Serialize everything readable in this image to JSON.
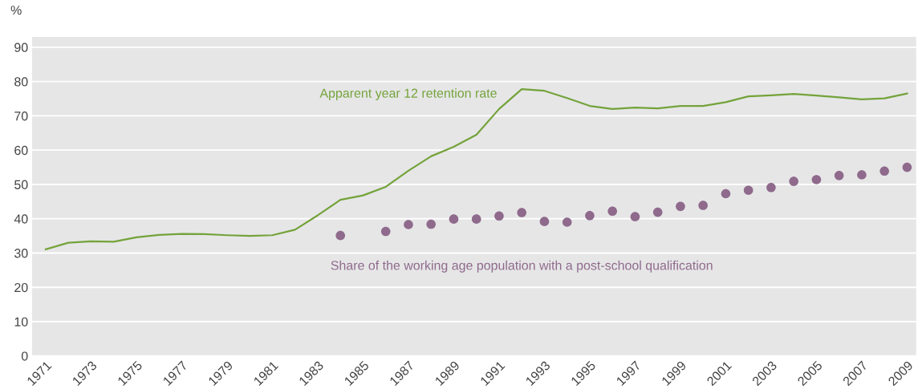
{
  "chart_data": {
    "type": "line",
    "ylabel": "%",
    "categories": [
      "1971",
      null,
      "1973",
      null,
      "1975",
      null,
      "1977",
      null,
      "1979",
      null,
      "1981",
      null,
      "1983",
      null,
      "1985",
      null,
      "1987",
      null,
      "1989",
      null,
      "1991",
      null,
      "1993",
      null,
      "1995",
      null,
      "1997",
      null,
      "1999",
      null,
      "2001",
      null,
      "2003",
      null,
      "2005",
      null,
      "2007",
      null,
      "2009"
    ],
    "series": [
      {
        "name": "Apparent year 12 retention rate",
        "color": "#74a33a",
        "marker": "none",
        "values": [
          31.1,
          33,
          33.4,
          33.3,
          34.6,
          35.3,
          35.6,
          35.5,
          35.2,
          35,
          35.2,
          36.8,
          41,
          45.5,
          46.8,
          49.3,
          54,
          58.2,
          61,
          64.5,
          72,
          77.8,
          77.3,
          75.2,
          72.9,
          72,
          72.4,
          72.2,
          72.9,
          72.9,
          74,
          75.7,
          76,
          76.4,
          75.9,
          75.4,
          74.8,
          75.1,
          76.5
        ]
      },
      {
        "name": "Share of the working age population with a post-school qualification",
        "type": "scatter",
        "color": "#8f6a8c",
        "marker": "circle",
        "values": [
          null,
          null,
          null,
          null,
          null,
          null,
          null,
          null,
          null,
          null,
          null,
          null,
          null,
          35.1,
          null,
          36.3,
          38.3,
          38.4,
          39.9,
          39.9,
          40.8,
          41.8,
          39.2,
          39,
          40.9,
          42.2,
          40.6,
          41.9,
          43.6,
          43.9,
          47.3,
          48.3,
          49.1,
          50.9,
          51.4,
          52.6,
          52.8,
          53.9,
          55
        ]
      }
    ],
    "ylim": [
      0,
      93
    ],
    "yticks": [
      0,
      10,
      20,
      30,
      40,
      50,
      60,
      70,
      80,
      90
    ],
    "grid": "y",
    "legend": false
  }
}
